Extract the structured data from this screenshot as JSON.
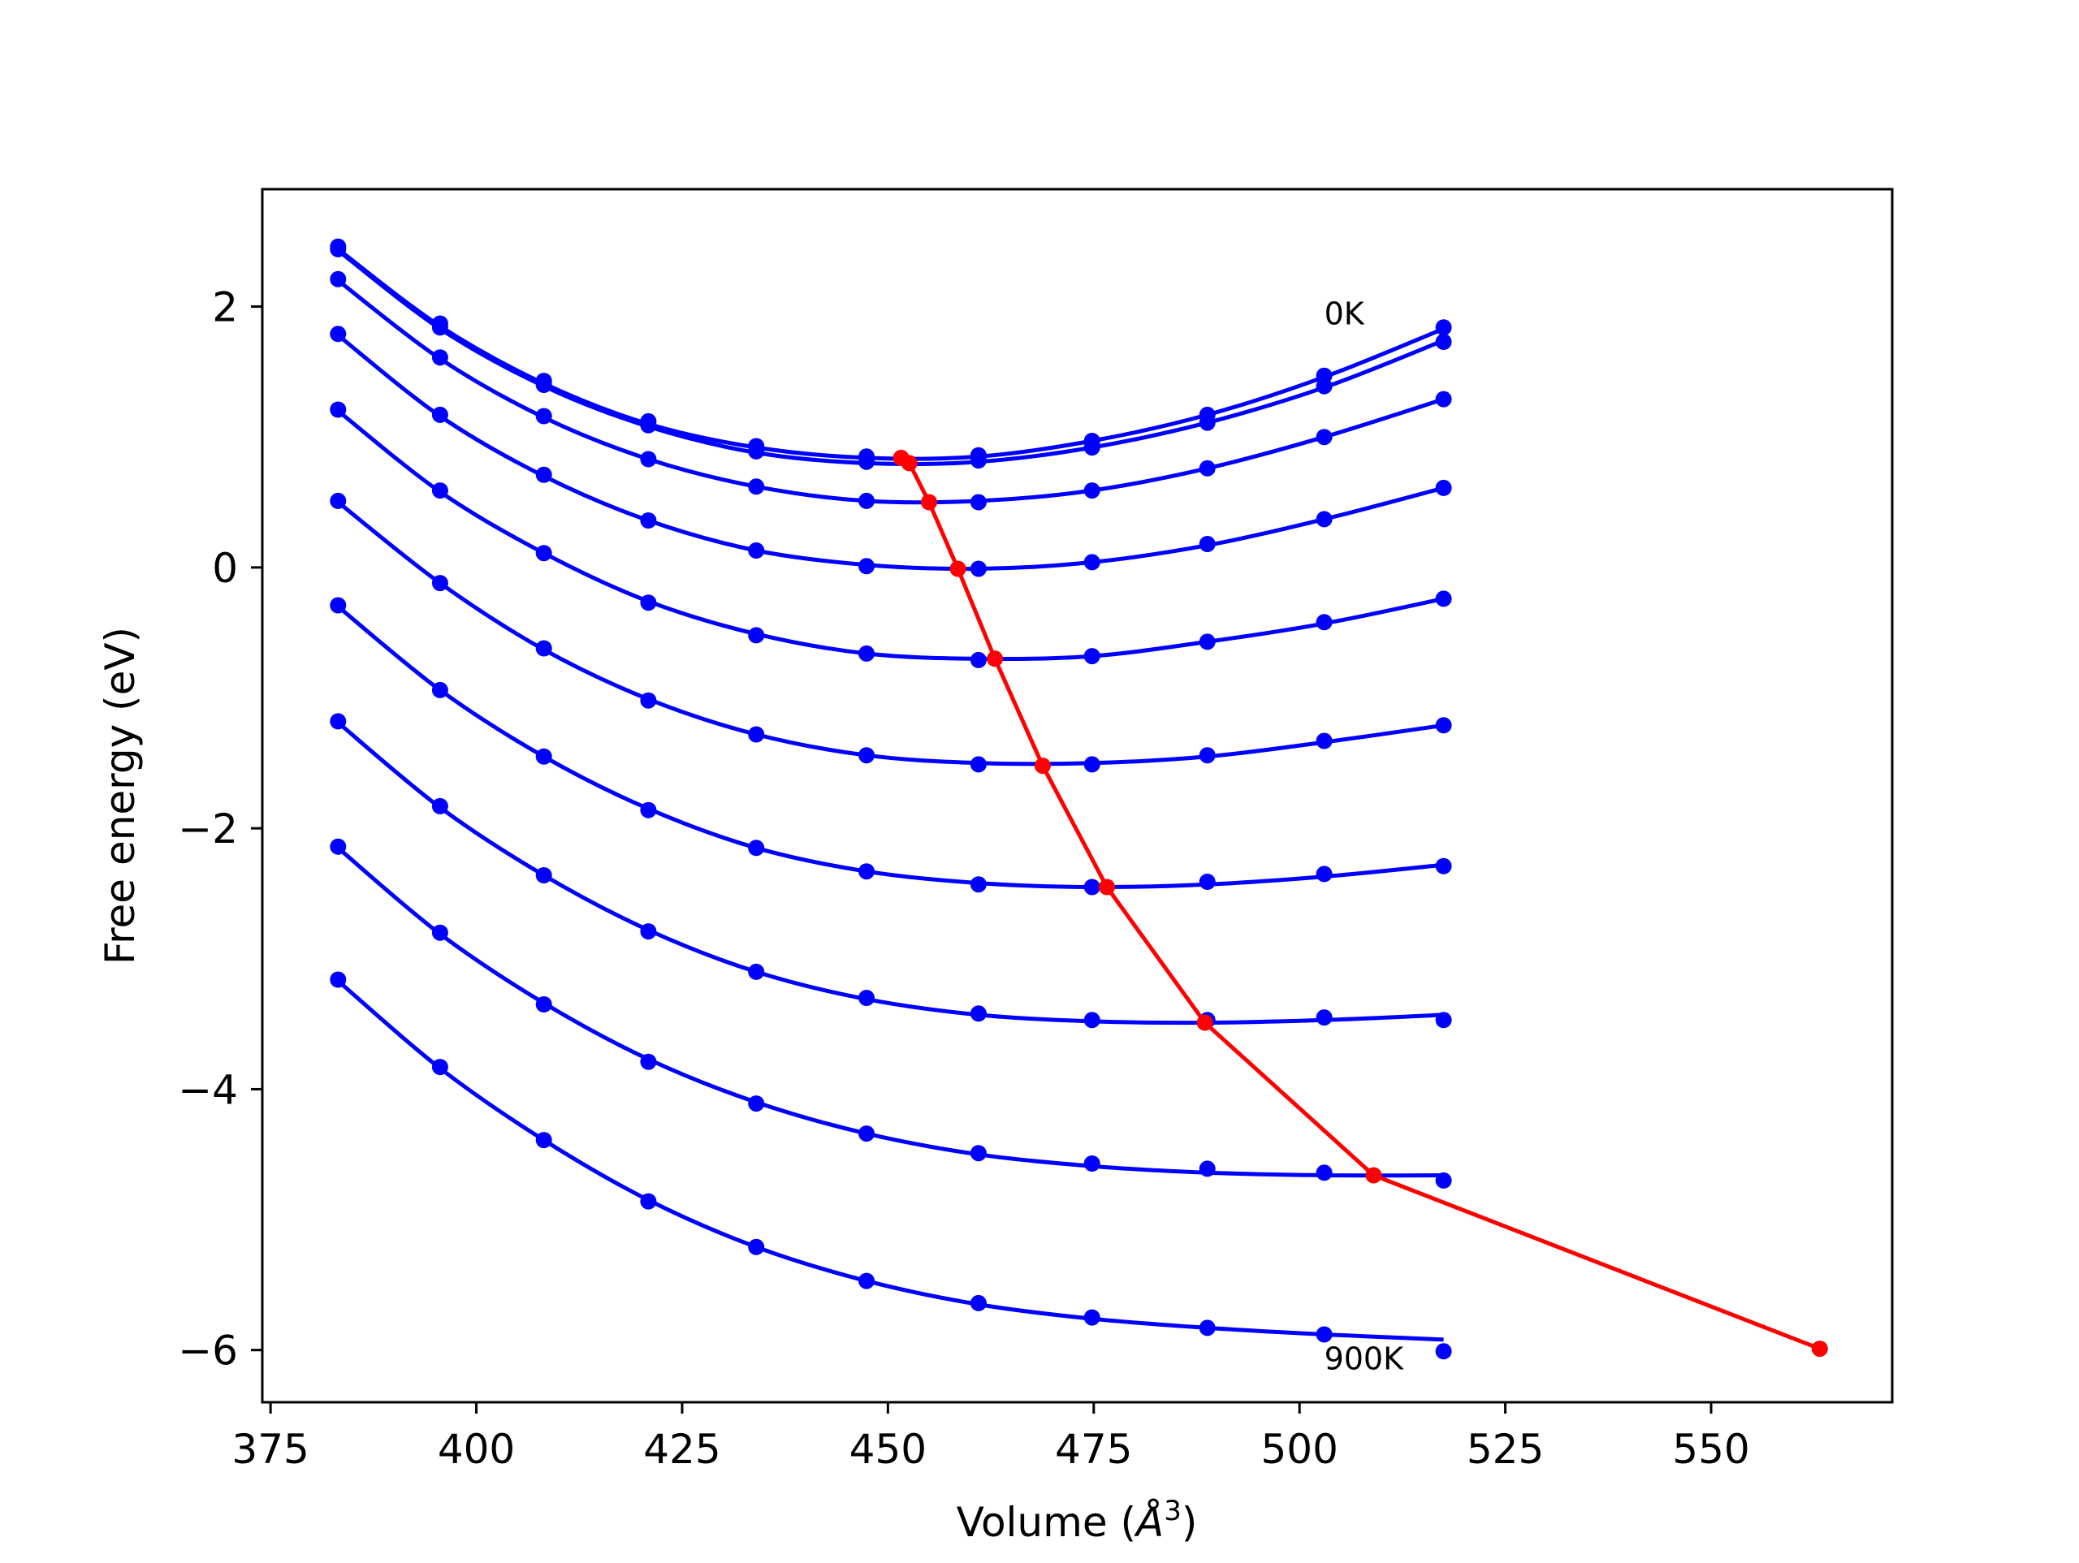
{
  "chart_data": {
    "type": "line",
    "xlabel": "Volume (",
    "xlabel_unit": "Å",
    "xlabel_exp": "3",
    "xlabel_close": ")",
    "ylabel": "Free energy (eV)",
    "xlim": [
      374,
      572
    ],
    "ylim": [
      -6.4,
      2.9
    ],
    "xticks": [
      375,
      400,
      425,
      450,
      475,
      500,
      525,
      550
    ],
    "xtick_labels": [
      "375",
      "400",
      "425",
      "450",
      "475",
      "500",
      "525",
      "550"
    ],
    "yticks": [
      2,
      0,
      -2,
      -4,
      -6
    ],
    "ytick_labels": [
      "2",
      "0",
      "−2",
      "−4",
      "−6"
    ],
    "grid": false,
    "legend": "none",
    "colors": {
      "curves": "#0000ff",
      "minimum": "#ff0000",
      "frame": "#000000"
    },
    "annotations": [
      {
        "text": "0K",
        "x": 503,
        "y": 1.95
      },
      {
        "text": "900K",
        "x": 503,
        "y": -6.06
      }
    ],
    "x": [
      383.2,
      395.6,
      408.2,
      420.9,
      434.0,
      447.4,
      461.0,
      474.8,
      488.8,
      503.0,
      517.5
    ],
    "series": [
      {
        "values": [
          2.46,
          1.87,
          1.43,
          1.12,
          0.93,
          0.85,
          0.86,
          0.97,
          1.17,
          1.47,
          1.84
        ]
      },
      {
        "values": [
          2.44,
          1.84,
          1.4,
          1.09,
          0.89,
          0.81,
          0.82,
          0.92,
          1.11,
          1.39,
          1.73
        ]
      },
      {
        "values": [
          2.21,
          1.61,
          1.16,
          0.83,
          0.62,
          0.51,
          0.5,
          0.59,
          0.76,
          1.0,
          1.29
        ]
      },
      {
        "values": [
          1.79,
          1.17,
          0.71,
          0.36,
          0.13,
          0.01,
          -0.01,
          0.04,
          0.18,
          0.37,
          0.61
        ]
      },
      {
        "values": [
          1.21,
          0.59,
          0.11,
          -0.27,
          -0.52,
          -0.66,
          -0.71,
          -0.68,
          -0.57,
          -0.42,
          -0.24
        ]
      },
      {
        "values": [
          0.51,
          -0.12,
          -0.62,
          -1.02,
          -1.28,
          -1.44,
          -1.51,
          -1.51,
          -1.44,
          -1.33,
          -1.21
        ]
      },
      {
        "values": [
          -0.29,
          -0.94,
          -1.45,
          -1.86,
          -2.15,
          -2.33,
          -2.43,
          -2.45,
          -2.41,
          -2.35,
          -2.29
        ]
      },
      {
        "values": [
          -1.18,
          -1.83,
          -2.36,
          -2.79,
          -3.1,
          -3.3,
          -3.42,
          -3.47,
          -3.47,
          -3.45,
          -3.47
        ]
      },
      {
        "values": [
          -2.14,
          -2.8,
          -3.35,
          -3.79,
          -4.11,
          -4.34,
          -4.49,
          -4.57,
          -4.61,
          -4.64,
          -4.7
        ]
      },
      {
        "values": [
          -3.16,
          -3.83,
          -4.39,
          -4.86,
          -5.21,
          -5.47,
          -5.64,
          -5.75,
          -5.83,
          -5.88,
          -6.01
        ]
      }
    ],
    "fits": [
      {
        "values": [
          2.44,
          1.85,
          1.41,
          1.1,
          0.92,
          0.84,
          0.85,
          0.97,
          1.17,
          1.46,
          1.83
        ]
      },
      {
        "values": [
          2.43,
          1.83,
          1.39,
          1.08,
          0.88,
          0.8,
          0.81,
          0.92,
          1.11,
          1.38,
          1.74
        ]
      },
      {
        "values": [
          2.2,
          1.6,
          1.15,
          0.83,
          0.62,
          0.51,
          0.51,
          0.59,
          0.76,
          1.0,
          1.29
        ]
      },
      {
        "values": [
          1.78,
          1.16,
          0.7,
          0.36,
          0.13,
          0.02,
          -0.01,
          0.04,
          0.17,
          0.37,
          0.61
        ]
      },
      {
        "values": [
          1.2,
          0.58,
          0.11,
          -0.26,
          -0.51,
          -0.66,
          -0.7,
          -0.68,
          -0.57,
          -0.43,
          -0.24
        ]
      },
      {
        "values": [
          0.5,
          -0.12,
          -0.63,
          -1.01,
          -1.28,
          -1.44,
          -1.5,
          -1.5,
          -1.45,
          -1.34,
          -1.21
        ]
      },
      {
        "values": [
          -0.3,
          -0.94,
          -1.45,
          -1.85,
          -2.15,
          -2.33,
          -2.42,
          -2.45,
          -2.43,
          -2.37,
          -2.28
        ]
      },
      {
        "values": [
          -1.19,
          -1.84,
          -2.36,
          -2.78,
          -3.1,
          -3.31,
          -3.43,
          -3.48,
          -3.49,
          -3.47,
          -3.43
        ]
      },
      {
        "values": [
          -2.15,
          -2.81,
          -3.34,
          -3.77,
          -4.1,
          -4.34,
          -4.5,
          -4.59,
          -4.64,
          -4.66,
          -4.66
        ]
      },
      {
        "values": [
          -3.17,
          -3.84,
          -4.39,
          -4.85,
          -5.21,
          -5.47,
          -5.65,
          -5.76,
          -5.83,
          -5.88,
          -5.92
        ]
      }
    ],
    "minimum_line": {
      "x": [
        451.6,
        452.6,
        455.0,
        458.5,
        463.0,
        468.8,
        476.6,
        488.5,
        509.0,
        563.2
      ],
      "y": [
        0.84,
        0.8,
        0.5,
        -0.01,
        -0.7,
        -1.52,
        -2.45,
        -3.49,
        -4.66,
        -5.99
      ]
    }
  }
}
